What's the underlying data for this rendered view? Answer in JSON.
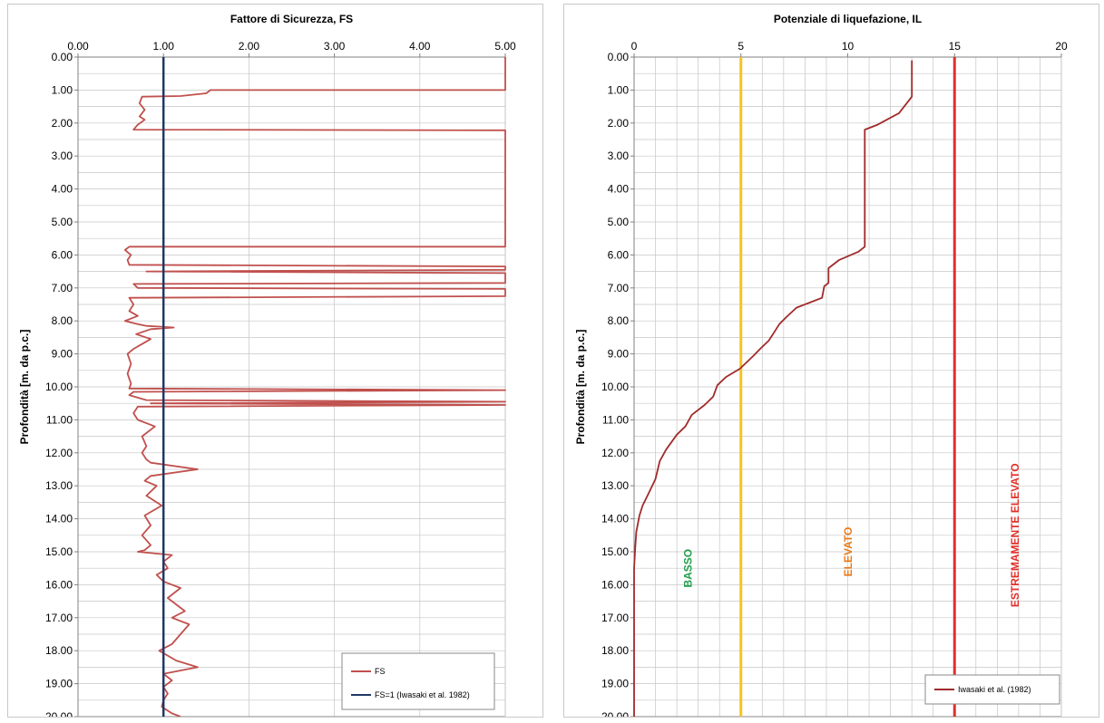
{
  "colors": {
    "fs": "#c0504d",
    "fs1": "#1f3864",
    "il": "#a12a2a",
    "yellow": "#f7c31f",
    "red": "#e1302a",
    "green": "#22a04b",
    "orange": "#e97a18",
    "grid": "#c6c6c6"
  },
  "chart_data": [
    {
      "type": "line",
      "title": "Fattore di Sicurezza, FS",
      "xlabel": "",
      "ylabel": "Profondità [m. da p.c.]",
      "xlim": [
        0,
        5
      ],
      "ylim": [
        0,
        20
      ],
      "y_inverted": true,
      "x_axis_position": "top",
      "xticks": [
        "0.00",
        "1.00",
        "2.00",
        "3.00",
        "4.00",
        "5.00"
      ],
      "yticks": [
        "0.00",
        "1.00",
        "2.00",
        "3.00",
        "4.00",
        "5.00",
        "6.00",
        "7.00",
        "8.00",
        "9.00",
        "10.00",
        "11.00",
        "12.00",
        "13.00",
        "14.00",
        "15.00",
        "16.00",
        "17.00",
        "18.00",
        "19.00",
        "20.00"
      ],
      "grid": true,
      "legend_position": "bottom-right",
      "series": [
        {
          "name": "FS",
          "color": "#c0504d",
          "points": [
            [
              5,
              0
            ],
            [
              5,
              1.0
            ],
            [
              1.55,
              1.0
            ],
            [
              1.5,
              1.1
            ],
            [
              1.2,
              1.18
            ],
            [
              0.75,
              1.2
            ],
            [
              0.72,
              1.4
            ],
            [
              0.78,
              1.6
            ],
            [
              0.72,
              1.8
            ],
            [
              0.78,
              1.9
            ],
            [
              0.7,
              2.05
            ],
            [
              0.65,
              2.2
            ],
            [
              5,
              2.22
            ],
            [
              5,
              5.75
            ],
            [
              0.6,
              5.75
            ],
            [
              0.55,
              5.85
            ],
            [
              0.62,
              6.0
            ],
            [
              0.58,
              6.15
            ],
            [
              0.6,
              6.3
            ],
            [
              5,
              6.35
            ],
            [
              5,
              6.45
            ],
            [
              0.8,
              6.5
            ],
            [
              5,
              6.55
            ],
            [
              5,
              6.85
            ],
            [
              0.65,
              6.88
            ],
            [
              0.7,
              7.0
            ],
            [
              5,
              7.03
            ],
            [
              5,
              7.25
            ],
            [
              0.6,
              7.3
            ],
            [
              0.65,
              7.5
            ],
            [
              0.6,
              7.7
            ],
            [
              0.7,
              7.85
            ],
            [
              0.55,
              8.0
            ],
            [
              0.7,
              8.1
            ],
            [
              0.8,
              8.15
            ],
            [
              1.12,
              8.2
            ],
            [
              0.85,
              8.25
            ],
            [
              0.68,
              8.4
            ],
            [
              0.85,
              8.55
            ],
            [
              0.75,
              8.7
            ],
            [
              0.65,
              8.85
            ],
            [
              0.58,
              9.0
            ],
            [
              0.62,
              9.3
            ],
            [
              0.58,
              9.6
            ],
            [
              0.62,
              9.9
            ],
            [
              0.6,
              10.05
            ],
            [
              5,
              10.1
            ],
            [
              0.65,
              10.15
            ],
            [
              0.6,
              10.25
            ],
            [
              0.8,
              10.4
            ],
            [
              5,
              10.45
            ],
            [
              0.85,
              10.5
            ],
            [
              5,
              10.55
            ],
            [
              0.7,
              10.6
            ],
            [
              0.65,
              10.8
            ],
            [
              0.7,
              11.0
            ],
            [
              0.9,
              11.2
            ],
            [
              0.75,
              11.5
            ],
            [
              0.8,
              11.8
            ],
            [
              0.75,
              12.0
            ],
            [
              0.8,
              12.2
            ],
            [
              0.85,
              12.3
            ],
            [
              1.4,
              12.5
            ],
            [
              0.85,
              12.7
            ],
            [
              0.78,
              12.85
            ],
            [
              0.92,
              13.0
            ],
            [
              0.8,
              13.3
            ],
            [
              0.98,
              13.6
            ],
            [
              0.78,
              13.9
            ],
            [
              0.85,
              14.2
            ],
            [
              0.75,
              14.5
            ],
            [
              0.85,
              14.8
            ],
            [
              0.78,
              14.95
            ],
            [
              0.7,
              15.0
            ],
            [
              1.1,
              15.1
            ],
            [
              1.0,
              15.3
            ],
            [
              1.05,
              15.5
            ],
            [
              0.92,
              15.7
            ],
            [
              1.0,
              15.9
            ],
            [
              1.2,
              16.1
            ],
            [
              1.05,
              16.4
            ],
            [
              1.25,
              16.8
            ],
            [
              1.1,
              17.0
            ],
            [
              1.3,
              17.2
            ],
            [
              1.2,
              17.5
            ],
            [
              1.1,
              17.8
            ],
            [
              0.95,
              18.0
            ],
            [
              1.15,
              18.3
            ],
            [
              1.4,
              18.5
            ],
            [
              1.0,
              18.7
            ],
            [
              1.1,
              18.9
            ],
            [
              1.0,
              19.1
            ],
            [
              1.05,
              19.3
            ],
            [
              1.0,
              19.5
            ],
            [
              0.98,
              19.7
            ],
            [
              1.1,
              19.9
            ],
            [
              1.2,
              20.0
            ]
          ]
        },
        {
          "name": "FS=1 (Iwasaki et al. 1982)",
          "color": "#1f3864",
          "points": [
            [
              1,
              0
            ],
            [
              1,
              20
            ]
          ]
        }
      ]
    },
    {
      "type": "line",
      "title": "Potenziale di liquefazione, IL",
      "xlabel": "",
      "ylabel": "Profondità [m. da p.c.]",
      "xlim": [
        0,
        20
      ],
      "ylim": [
        0,
        20
      ],
      "y_inverted": true,
      "x_axis_position": "top",
      "xticks": [
        "0",
        "5",
        "10",
        "15",
        "20"
      ],
      "yticks": [
        "0.00",
        "1.00",
        "2.00",
        "3.00",
        "4.00",
        "5.00",
        "6.00",
        "7.00",
        "8.00",
        "9.00",
        "10.00",
        "11.00",
        "12.00",
        "13.00",
        "14.00",
        "15.00",
        "16.00",
        "17.00",
        "18.00",
        "19.00",
        "20.00"
      ],
      "grid": true,
      "legend_position": "bottom-right",
      "series": [
        {
          "name": "Iwasaki et al. (1982)",
          "color": "#a12a2a",
          "points": [
            [
              13,
              0.1
            ],
            [
              13,
              1.2
            ],
            [
              12.4,
              1.7
            ],
            [
              11.4,
              2.05
            ],
            [
              10.8,
              2.2
            ],
            [
              10.8,
              5.75
            ],
            [
              10.5,
              5.9
            ],
            [
              9.6,
              6.15
            ],
            [
              9.1,
              6.4
            ],
            [
              9.1,
              6.85
            ],
            [
              8.9,
              6.95
            ],
            [
              8.8,
              7.3
            ],
            [
              7.6,
              7.6
            ],
            [
              7.1,
              7.9
            ],
            [
              6.8,
              8.1
            ],
            [
              6.5,
              8.4
            ],
            [
              6.3,
              8.6
            ],
            [
              5.9,
              8.85
            ],
            [
              5.6,
              9.05
            ],
            [
              4.95,
              9.45
            ],
            [
              4.3,
              9.7
            ],
            [
              3.9,
              9.95
            ],
            [
              3.7,
              10.3
            ],
            [
              3.3,
              10.55
            ],
            [
              2.7,
              10.85
            ],
            [
              2.4,
              11.2
            ],
            [
              2.0,
              11.45
            ],
            [
              1.5,
              11.9
            ],
            [
              1.2,
              12.25
            ],
            [
              1.0,
              12.8
            ],
            [
              0.7,
              13.2
            ],
            [
              0.4,
              13.6
            ],
            [
              0.25,
              13.9
            ],
            [
              0.1,
              14.4
            ],
            [
              0.05,
              14.9
            ],
            [
              0,
              15.5
            ],
            [
              0,
              20
            ]
          ]
        }
      ],
      "threshold_lines": [
        {
          "x": 5,
          "color": "#f7c31f"
        },
        {
          "x": 15,
          "color": "#e1302a"
        }
      ],
      "annotations": [
        {
          "text": "BASSO",
          "x": 2.7,
          "y": 15.5,
          "color": "#22a04b"
        },
        {
          "text": "ELEVATO",
          "x": 10.2,
          "y": 15.0,
          "color": "#e97a18"
        },
        {
          "text": "ESTREMAMENTE ELEVATO",
          "x": 18.0,
          "y": 14.5,
          "color": "#e1302a"
        }
      ]
    }
  ]
}
